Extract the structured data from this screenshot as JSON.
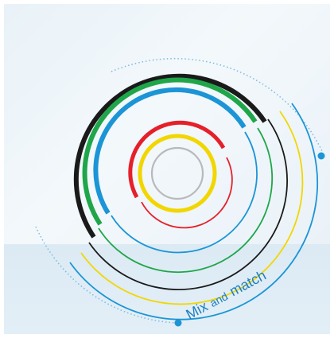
{
  "caption": {
    "word1": "Mix",
    "word2": "and",
    "word3": "match"
  },
  "colors": {
    "black": "#1a1a1a",
    "green": "#1fa64a",
    "blue": "#1b95d6",
    "red": "#e5202a",
    "yellow": "#f2d600",
    "gray": "#b9b9b9",
    "caption": "#1d7fc0",
    "dotted": "#6fb1da"
  },
  "icons": [
    "concentric-rings",
    "dotted-arc",
    "dot-marker"
  ]
}
